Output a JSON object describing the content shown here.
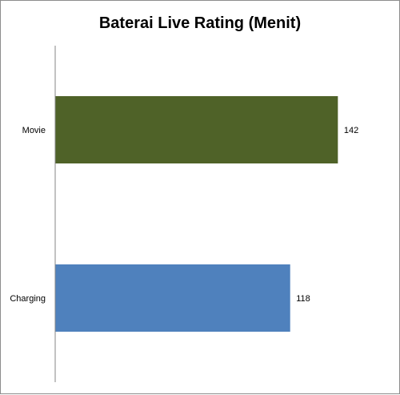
{
  "chart_data": {
    "type": "bar",
    "orientation": "horizontal",
    "title": "Baterai Live Rating (Menit)",
    "categories": [
      "Movie",
      "Charging"
    ],
    "values": [
      142,
      118
    ],
    "colors": [
      "#4f6228",
      "#4f81bd"
    ],
    "xlim": [
      0,
      165
    ],
    "grid": false,
    "legend": "none"
  }
}
